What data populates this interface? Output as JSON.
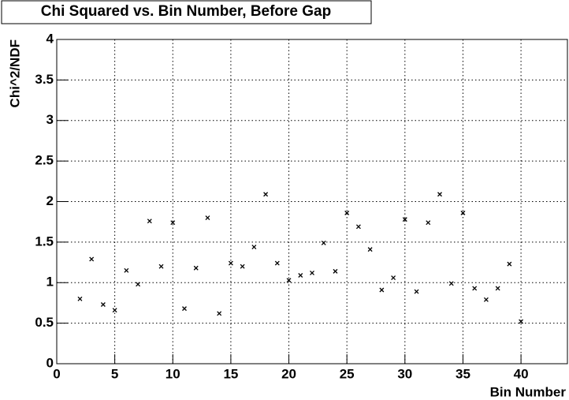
{
  "chart_data": {
    "type": "scatter",
    "title": "Chi Squared vs. Bin Number, Before Gap",
    "x_label": "Bin Number",
    "y_label": "Chi^2/NDF",
    "x": [
      2,
      3,
      4,
      5,
      6,
      7,
      8,
      9,
      10,
      11,
      12,
      13,
      14,
      15,
      16,
      17,
      18,
      19,
      20,
      21,
      22,
      23,
      24,
      25,
      26,
      27,
      28,
      29,
      30,
      31,
      32,
      33,
      34,
      35,
      36,
      37,
      38,
      39,
      40
    ],
    "values": [
      0.8,
      1.29,
      0.73,
      0.66,
      1.15,
      0.98,
      1.76,
      1.2,
      1.74,
      0.68,
      1.18,
      1.8,
      0.62,
      1.24,
      1.2,
      1.44,
      2.09,
      1.24,
      1.03,
      1.09,
      1.12,
      1.49,
      1.14,
      1.86,
      1.69,
      1.41,
      0.91,
      1.06,
      1.78,
      0.89,
      1.74,
      2.09,
      0.99,
      1.86,
      0.93,
      0.79,
      0.93,
      1.23,
      0.52
    ],
    "color": "#000000",
    "xlim": [
      0,
      44
    ],
    "ylim": [
      0,
      4
    ],
    "xticks": [
      0,
      5,
      10,
      15,
      20,
      25,
      30,
      35,
      40
    ],
    "yticks": [
      0,
      0.5,
      1,
      1.5,
      2,
      2.5,
      3,
      3.5,
      4
    ],
    "grid": true
  }
}
